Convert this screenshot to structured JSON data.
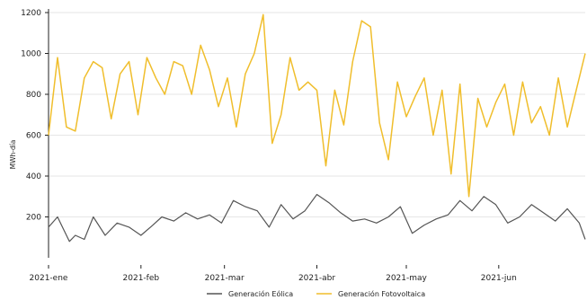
{
  "chart_data": {
    "type": "line",
    "title": "",
    "xlabel": "",
    "ylabel": "MWh-día",
    "ylim": [
      0,
      1200
    ],
    "y_ticks": [
      200,
      400,
      600,
      800,
      1000,
      1200
    ],
    "x_tick_labels": [
      "2021-ene",
      "2021-feb",
      "2021-mar",
      "2021-abr",
      "2021-may",
      "2021-jun"
    ],
    "x_tick_dates": [
      "2021-01-01",
      "2021-02-01",
      "2021-03-01",
      "2021-04-01",
      "2021-05-01",
      "2021-06-01"
    ],
    "x_range": [
      "2021-01-01",
      "2021-06-30"
    ],
    "grid": true,
    "legend_position": "bottom",
    "colors": {
      "eolica": "#555555",
      "fotovoltaica": "#f0be2c"
    },
    "series": [
      {
        "name": "Generación Eólica",
        "color": "#555555",
        "x": [
          "2021-01-01",
          "2021-01-04",
          "2021-01-08",
          "2021-01-10",
          "2021-01-13",
          "2021-01-16",
          "2021-01-20",
          "2021-01-24",
          "2021-01-28",
          "2021-02-01",
          "2021-02-05",
          "2021-02-08",
          "2021-02-12",
          "2021-02-16",
          "2021-02-20",
          "2021-02-24",
          "2021-02-28",
          "2021-03-04",
          "2021-03-08",
          "2021-03-12",
          "2021-03-16",
          "2021-03-20",
          "2021-03-24",
          "2021-03-28",
          "2021-04-01",
          "2021-04-05",
          "2021-04-09",
          "2021-04-13",
          "2021-04-17",
          "2021-04-21",
          "2021-04-25",
          "2021-04-29",
          "2021-05-03",
          "2021-05-07",
          "2021-05-11",
          "2021-05-15",
          "2021-05-19",
          "2021-05-23",
          "2021-05-27",
          "2021-05-31",
          "2021-06-04",
          "2021-06-08",
          "2021-06-12",
          "2021-06-16",
          "2021-06-20",
          "2021-06-24",
          "2021-06-28",
          "2021-06-30"
        ],
        "values": [
          150,
          200,
          80,
          110,
          90,
          200,
          110,
          170,
          150,
          110,
          160,
          200,
          180,
          220,
          190,
          210,
          170,
          280,
          250,
          230,
          150,
          260,
          190,
          230,
          310,
          270,
          220,
          180,
          190,
          170,
          200,
          250,
          120,
          160,
          190,
          210,
          280,
          230,
          300,
          260,
          170,
          200,
          260,
          220,
          180,
          240,
          170,
          90
        ]
      },
      {
        "name": "Generación Fotovoltaica",
        "color": "#f0be2c",
        "x": [
          "2021-01-01",
          "2021-01-04",
          "2021-01-07",
          "2021-01-10",
          "2021-01-13",
          "2021-01-16",
          "2021-01-19",
          "2021-01-22",
          "2021-01-25",
          "2021-01-28",
          "2021-01-31",
          "2021-02-03",
          "2021-02-06",
          "2021-02-09",
          "2021-02-12",
          "2021-02-15",
          "2021-02-18",
          "2021-02-21",
          "2021-02-24",
          "2021-02-27",
          "2021-03-02",
          "2021-03-05",
          "2021-03-08",
          "2021-03-11",
          "2021-03-14",
          "2021-03-17",
          "2021-03-20",
          "2021-03-23",
          "2021-03-26",
          "2021-03-29",
          "2021-04-01",
          "2021-04-04",
          "2021-04-07",
          "2021-04-10",
          "2021-04-13",
          "2021-04-16",
          "2021-04-19",
          "2021-04-22",
          "2021-04-25",
          "2021-04-28",
          "2021-05-01",
          "2021-05-04",
          "2021-05-07",
          "2021-05-10",
          "2021-05-13",
          "2021-05-16",
          "2021-05-19",
          "2021-05-22",
          "2021-05-25",
          "2021-05-28",
          "2021-05-31",
          "2021-06-03",
          "2021-06-06",
          "2021-06-09",
          "2021-06-12",
          "2021-06-15",
          "2021-06-18",
          "2021-06-21",
          "2021-06-24",
          "2021-06-27",
          "2021-06-30"
        ],
        "values": [
          600,
          980,
          640,
          620,
          880,
          960,
          930,
          680,
          900,
          960,
          700,
          980,
          880,
          800,
          960,
          940,
          800,
          1040,
          920,
          740,
          880,
          640,
          900,
          1000,
          1190,
          560,
          700,
          980,
          820,
          860,
          820,
          450,
          820,
          650,
          960,
          1160,
          1130,
          660,
          480,
          860,
          690,
          790,
          880,
          600,
          820,
          410,
          850,
          300,
          780,
          640,
          760,
          850,
          600,
          860,
          660,
          740,
          600,
          880,
          640,
          820,
          1000
        ]
      }
    ]
  }
}
